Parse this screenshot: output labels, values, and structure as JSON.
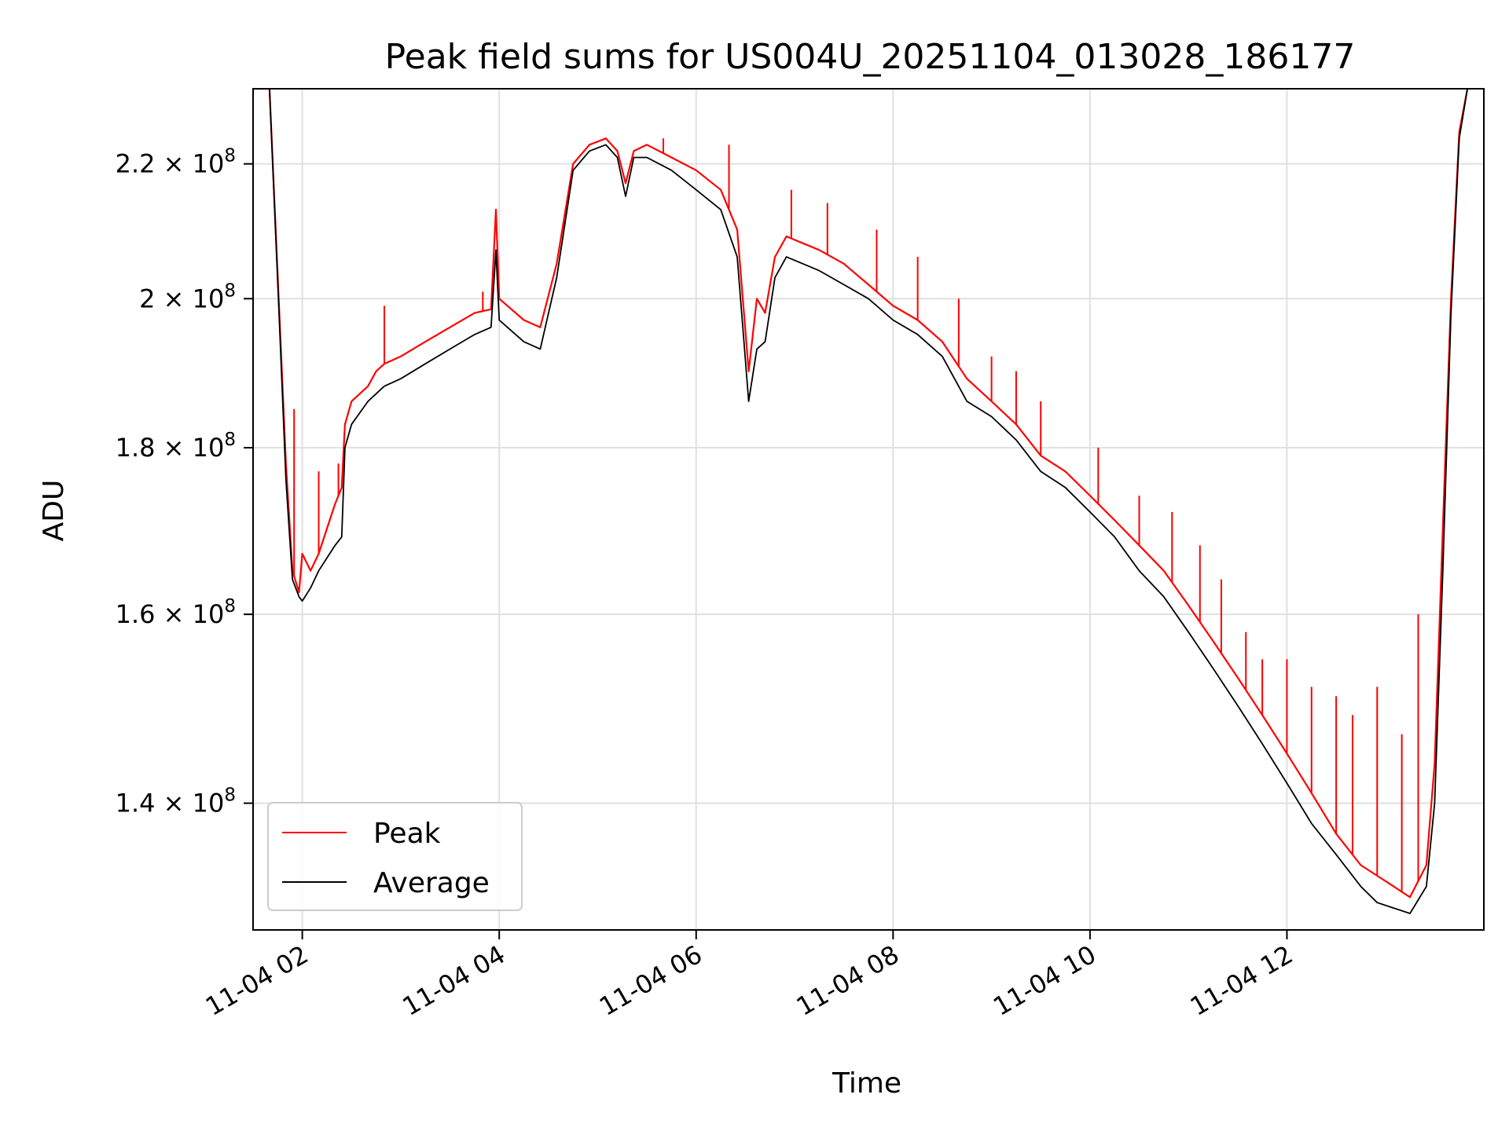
{
  "chart_data": {
    "type": "line",
    "title": "Peak field sums for US004U_20251104_013028_186177",
    "xlabel": "Time",
    "ylabel": "ADU",
    "yscale": "log",
    "grid": true,
    "legend_placement": "lower-left",
    "xlim": [
      "2025-11-04 01:30",
      "2025-11-04 14:00"
    ],
    "ylim": [
      128000000,
      232000000
    ],
    "x_ticks": [
      {
        "value": "2025-11-04 02:00",
        "label": "11-04 02"
      },
      {
        "value": "2025-11-04 04:00",
        "label": "11-04 04"
      },
      {
        "value": "2025-11-04 06:00",
        "label": "11-04 06"
      },
      {
        "value": "2025-11-04 08:00",
        "label": "11-04 08"
      },
      {
        "value": "2025-11-04 10:00",
        "label": "11-04 10"
      },
      {
        "value": "2025-11-04 12:00",
        "label": "11-04 12"
      }
    ],
    "y_ticks": [
      {
        "value": 140000000,
        "mantissa": "1.4",
        "exponent": "8"
      },
      {
        "value": 160000000,
        "mantissa": "1.6",
        "exponent": "8"
      },
      {
        "value": 180000000,
        "mantissa": "1.8",
        "exponent": "8"
      },
      {
        "value": 200000000,
        "mantissa": "2",
        "exponent": "8"
      },
      {
        "value": 220000000,
        "mantissa": "2.2",
        "exponent": "8"
      }
    ],
    "series": [
      {
        "name": "Peak",
        "color": "#ff0000",
        "x": [
          "2025-11-04 01:30",
          "2025-11-04 01:40",
          "2025-11-04 01:46",
          "2025-11-04 01:50",
          "2025-11-04 01:54",
          "2025-11-04 01:58",
          "2025-11-04 02:00",
          "2025-11-04 02:05",
          "2025-11-04 02:10",
          "2025-11-04 02:15",
          "2025-11-04 02:20",
          "2025-11-04 02:24",
          "2025-11-04 02:26",
          "2025-11-04 02:30",
          "2025-11-04 02:40",
          "2025-11-04 02:45",
          "2025-11-04 02:50",
          "2025-11-04 03:00",
          "2025-11-04 03:15",
          "2025-11-04 03:30",
          "2025-11-04 03:45",
          "2025-11-04 03:55",
          "2025-11-04 03:58",
          "2025-11-04 04:00",
          "2025-11-04 04:05",
          "2025-11-04 04:15",
          "2025-11-04 04:25",
          "2025-11-04 04:35",
          "2025-11-04 04:45",
          "2025-11-04 04:55",
          "2025-11-04 05:05",
          "2025-11-04 05:12",
          "2025-11-04 05:17",
          "2025-11-04 05:22",
          "2025-11-04 05:30",
          "2025-11-04 05:45",
          "2025-11-04 06:00",
          "2025-11-04 06:15",
          "2025-11-04 06:25",
          "2025-11-04 06:32",
          "2025-11-04 06:37",
          "2025-11-04 06:42",
          "2025-11-04 06:48",
          "2025-11-04 06:55",
          "2025-11-04 07:05",
          "2025-11-04 07:15",
          "2025-11-04 07:30",
          "2025-11-04 07:45",
          "2025-11-04 08:00",
          "2025-11-04 08:15",
          "2025-11-04 08:30",
          "2025-11-04 08:45",
          "2025-11-04 09:00",
          "2025-11-04 09:15",
          "2025-11-04 09:30",
          "2025-11-04 09:45",
          "2025-11-04 10:00",
          "2025-11-04 10:15",
          "2025-11-04 10:30",
          "2025-11-04 10:45",
          "2025-11-04 11:00",
          "2025-11-04 11:15",
          "2025-11-04 11:30",
          "2025-11-04 11:45",
          "2025-11-04 12:00",
          "2025-11-04 12:15",
          "2025-11-04 12:30",
          "2025-11-04 12:45",
          "2025-11-04 12:55",
          "2025-11-04 13:05",
          "2025-11-04 13:15",
          "2025-11-04 13:25",
          "2025-11-04 13:30",
          "2025-11-04 13:35",
          "2025-11-04 13:40",
          "2025-11-04 13:45",
          "2025-11-04 13:50"
        ],
        "y": [
          232000000,
          232000000,
          198000000,
          178000000,
          165000000,
          162500000,
          167000000,
          165000000,
          167000000,
          170000000,
          173000000,
          175000000,
          183000000,
          186000000,
          188000000,
          190000000,
          191000000,
          192000000,
          194000000,
          196000000,
          198000000,
          198500000,
          213000000,
          200000000,
          199000000,
          197000000,
          196000000,
          205000000,
          220000000,
          223000000,
          224000000,
          222000000,
          217000000,
          222000000,
          223000000,
          221000000,
          219000000,
          216000000,
          210000000,
          190000000,
          200000000,
          198000000,
          206000000,
          209000000,
          208000000,
          207000000,
          205000000,
          202000000,
          199000000,
          197000000,
          194000000,
          189000000,
          186000000,
          183000000,
          179000000,
          177000000,
          174000000,
          171000000,
          168000000,
          165000000,
          161000000,
          157000000,
          153000000,
          149000000,
          145000000,
          141000000,
          137000000,
          134000000,
          133000000,
          132000000,
          131000000,
          134000000,
          144000000,
          170000000,
          200000000,
          225000000,
          232000000
        ],
        "spikes": [
          {
            "x": "2025-11-04 01:55",
            "y": 185000000
          },
          {
            "x": "2025-11-04 02:10",
            "y": 177000000
          },
          {
            "x": "2025-11-04 02:22",
            "y": 178000000
          },
          {
            "x": "2025-11-04 02:50",
            "y": 199000000
          },
          {
            "x": "2025-11-04 03:50",
            "y": 201000000
          },
          {
            "x": "2025-11-04 05:40",
            "y": 224000000
          },
          {
            "x": "2025-11-04 06:20",
            "y": 223000000
          },
          {
            "x": "2025-11-04 06:58",
            "y": 216000000
          },
          {
            "x": "2025-11-04 07:20",
            "y": 214000000
          },
          {
            "x": "2025-11-04 07:50",
            "y": 210000000
          },
          {
            "x": "2025-11-04 08:15",
            "y": 206000000
          },
          {
            "x": "2025-11-04 08:40",
            "y": 200000000
          },
          {
            "x": "2025-11-04 09:00",
            "y": 192000000
          },
          {
            "x": "2025-11-04 09:15",
            "y": 190000000
          },
          {
            "x": "2025-11-04 09:30",
            "y": 186000000
          },
          {
            "x": "2025-11-04 10:05",
            "y": 180000000
          },
          {
            "x": "2025-11-04 10:30",
            "y": 174000000
          },
          {
            "x": "2025-11-04 10:50",
            "y": 172000000
          },
          {
            "x": "2025-11-04 11:07",
            "y": 168000000
          },
          {
            "x": "2025-11-04 11:20",
            "y": 164000000
          },
          {
            "x": "2025-11-04 11:35",
            "y": 158000000
          },
          {
            "x": "2025-11-04 11:45",
            "y": 155000000
          },
          {
            "x": "2025-11-04 12:00",
            "y": 155000000
          },
          {
            "x": "2025-11-04 12:15",
            "y": 152000000
          },
          {
            "x": "2025-11-04 12:30",
            "y": 151000000
          },
          {
            "x": "2025-11-04 12:40",
            "y": 149000000
          },
          {
            "x": "2025-11-04 12:55",
            "y": 152000000
          },
          {
            "x": "2025-11-04 13:10",
            "y": 147000000
          },
          {
            "x": "2025-11-04 13:20",
            "y": 160000000
          }
        ]
      },
      {
        "name": "Average",
        "color": "#000000",
        "x": [
          "2025-11-04 01:30",
          "2025-11-04 01:40",
          "2025-11-04 01:46",
          "2025-11-04 01:50",
          "2025-11-04 01:54",
          "2025-11-04 01:58",
          "2025-11-04 02:00",
          "2025-11-04 02:05",
          "2025-11-04 02:10",
          "2025-11-04 02:15",
          "2025-11-04 02:20",
          "2025-11-04 02:24",
          "2025-11-04 02:26",
          "2025-11-04 02:30",
          "2025-11-04 02:40",
          "2025-11-04 02:45",
          "2025-11-04 02:50",
          "2025-11-04 03:00",
          "2025-11-04 03:15",
          "2025-11-04 03:30",
          "2025-11-04 03:45",
          "2025-11-04 03:55",
          "2025-11-04 03:58",
          "2025-11-04 04:00",
          "2025-11-04 04:05",
          "2025-11-04 04:15",
          "2025-11-04 04:25",
          "2025-11-04 04:35",
          "2025-11-04 04:45",
          "2025-11-04 04:55",
          "2025-11-04 05:05",
          "2025-11-04 05:12",
          "2025-11-04 05:17",
          "2025-11-04 05:22",
          "2025-11-04 05:30",
          "2025-11-04 05:45",
          "2025-11-04 06:00",
          "2025-11-04 06:15",
          "2025-11-04 06:25",
          "2025-11-04 06:32",
          "2025-11-04 06:37",
          "2025-11-04 06:42",
          "2025-11-04 06:48",
          "2025-11-04 06:55",
          "2025-11-04 07:05",
          "2025-11-04 07:15",
          "2025-11-04 07:30",
          "2025-11-04 07:45",
          "2025-11-04 08:00",
          "2025-11-04 08:15",
          "2025-11-04 08:30",
          "2025-11-04 08:45",
          "2025-11-04 09:00",
          "2025-11-04 09:15",
          "2025-11-04 09:30",
          "2025-11-04 09:45",
          "2025-11-04 10:00",
          "2025-11-04 10:15",
          "2025-11-04 10:30",
          "2025-11-04 10:45",
          "2025-11-04 11:00",
          "2025-11-04 11:15",
          "2025-11-04 11:30",
          "2025-11-04 11:45",
          "2025-11-04 12:00",
          "2025-11-04 12:15",
          "2025-11-04 12:30",
          "2025-11-04 12:45",
          "2025-11-04 12:55",
          "2025-11-04 13:05",
          "2025-11-04 13:15",
          "2025-11-04 13:25",
          "2025-11-04 13:30",
          "2025-11-04 13:35",
          "2025-11-04 13:40",
          "2025-11-04 13:45",
          "2025-11-04 13:50"
        ],
        "y": [
          232000000,
          232000000,
          197000000,
          176000000,
          164000000,
          162000000,
          161500000,
          163000000,
          165000000,
          166500000,
          168000000,
          169000000,
          180000000,
          183000000,
          186000000,
          187000000,
          188000000,
          189000000,
          191000000,
          193000000,
          195000000,
          196000000,
          207000000,
          197000000,
          196000000,
          194000000,
          193000000,
          203000000,
          219000000,
          222000000,
          223000000,
          221000000,
          215000000,
          221000000,
          221000000,
          219000000,
          216000000,
          213000000,
          206000000,
          186000000,
          193000000,
          194000000,
          203000000,
          206000000,
          205000000,
          204000000,
          202000000,
          200000000,
          197000000,
          195000000,
          192000000,
          186000000,
          184000000,
          181000000,
          177000000,
          175000000,
          172000000,
          169000000,
          165000000,
          162000000,
          158000000,
          154000000,
          150000000,
          146000000,
          142000000,
          138000000,
          135000000,
          132000000,
          130500000,
          130000000,
          129500000,
          132000000,
          140000000,
          165000000,
          198000000,
          224000000,
          232000000
        ],
        "spikes": []
      }
    ]
  }
}
